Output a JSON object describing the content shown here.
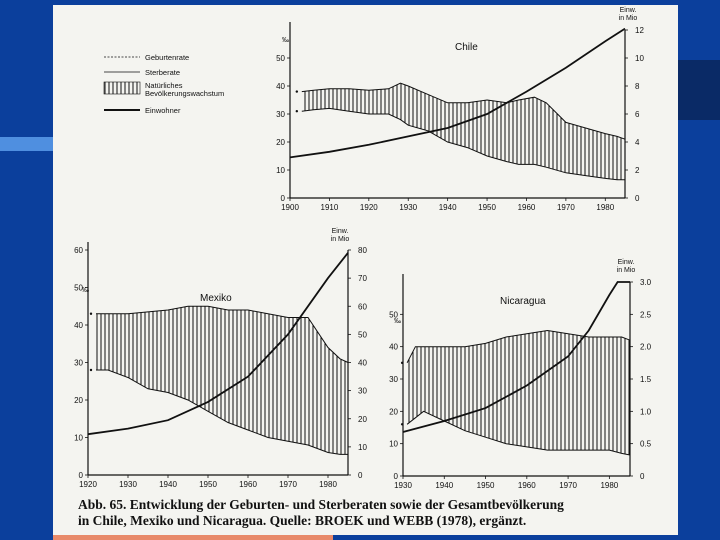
{
  "colors": {
    "background": "#0b3f9c",
    "paper": "#f4f4f0",
    "ink": "#111111"
  },
  "legend": {
    "items": [
      {
        "label": "Geburtenrate",
        "style": "thin"
      },
      {
        "label": "Sterberate",
        "style": "thin"
      },
      {
        "label": "Natürliches Bevölkerungswachstum",
        "style": "hatch"
      },
      {
        "label": "Einwohner",
        "style": "thick"
      }
    ]
  },
  "caption": {
    "line1": "Abb. 65. Entwicklung der Geburten- und Sterberaten sowie der Gesamtbevölkerung",
    "line2": "in Chile, Mexiko und Nicaragua. Quelle: BROEK und WEBB (1978), ergänzt."
  },
  "chart_data": [
    {
      "type": "line",
      "title": "Chile",
      "ylabel": "‰",
      "y2label": "Einw. in Mio",
      "xlim": [
        1900,
        1985
      ],
      "ylim": [
        0,
        60
      ],
      "y2lim": [
        0,
        12
      ],
      "xticks": [
        "1900",
        "1910",
        "1920",
        "1930",
        "1940",
        "1950",
        "1960",
        "1970",
        "1980"
      ],
      "yticks": [
        "0",
        "10",
        "20",
        "30",
        "40",
        "50"
      ],
      "y2ticks": [
        "0",
        "2",
        "4",
        "6",
        "8",
        "10",
        "12"
      ],
      "series": [
        {
          "name": "Geburtenrate",
          "x": [
            1903,
            1906,
            1910,
            1915,
            1920,
            1925,
            1928,
            1930,
            1935,
            1940,
            1945,
            1950,
            1955,
            1958,
            1962,
            1965,
            1970,
            1975,
            1980,
            1983,
            1985
          ],
          "values": [
            38,
            38.5,
            39,
            39,
            38.5,
            39,
            41,
            40,
            37,
            34,
            34,
            35,
            34,
            35,
            36,
            34,
            27,
            25,
            23,
            22,
            21
          ]
        },
        {
          "name": "Sterberate",
          "x": [
            1903,
            1906,
            1910,
            1915,
            1920,
            1925,
            1928,
            1930,
            1935,
            1940,
            1945,
            1950,
            1955,
            1958,
            1962,
            1965,
            1970,
            1975,
            1980,
            1983,
            1985
          ],
          "values": [
            31,
            31.5,
            32,
            31,
            30,
            30,
            28,
            26,
            24,
            20,
            18,
            15,
            13,
            12,
            12,
            11,
            9,
            8,
            7,
            6.5,
            6.5
          ]
        },
        {
          "name": "Einwohner",
          "axis": "y2",
          "x": [
            1900,
            1910,
            1920,
            1930,
            1940,
            1950,
            1960,
            1970,
            1980,
            1985
          ],
          "values": [
            2.9,
            3.3,
            3.8,
            4.4,
            5.0,
            6.0,
            7.6,
            9.3,
            11.2,
            12.1
          ]
        }
      ]
    },
    {
      "type": "line",
      "title": "Mexiko",
      "ylabel": "‰",
      "y2label": "Einw. in Mio",
      "xlim": [
        1920,
        1985
      ],
      "ylim": [
        0,
        60
      ],
      "y2lim": [
        0,
        80
      ],
      "xticks": [
        "1920",
        "1930",
        "1940",
        "1950",
        "1960",
        "1970",
        "1980"
      ],
      "yticks": [
        "0",
        "10",
        "20",
        "30",
        "40",
        "50",
        "60"
      ],
      "y2ticks": [
        "0",
        "10",
        "20",
        "30",
        "40",
        "50",
        "60",
        "70",
        "80"
      ],
      "series": [
        {
          "name": "Geburtenrate",
          "x": [
            1922,
            1925,
            1930,
            1935,
            1940,
            1945,
            1950,
            1955,
            1960,
            1965,
            1970,
            1975,
            1980,
            1983,
            1985
          ],
          "values": [
            43,
            43,
            43,
            43.5,
            44,
            45,
            45,
            44,
            44,
            43,
            42,
            42,
            34,
            31,
            30
          ]
        },
        {
          "name": "Sterberate",
          "x": [
            1922,
            1925,
            1930,
            1935,
            1940,
            1945,
            1950,
            1955,
            1960,
            1965,
            1970,
            1975,
            1980,
            1983,
            1985
          ],
          "values": [
            28,
            28,
            26,
            23,
            22,
            20,
            17,
            14,
            12,
            10,
            9,
            8,
            6,
            5.5,
            5.5
          ]
        },
        {
          "name": "Einwohner",
          "axis": "y2",
          "x": [
            1920,
            1930,
            1940,
            1950,
            1960,
            1970,
            1980,
            1985
          ],
          "values": [
            14.5,
            16.5,
            19.5,
            26,
            35,
            50,
            70,
            79
          ]
        }
      ]
    },
    {
      "type": "line",
      "title": "Nicaragua",
      "ylabel": "‰",
      "y2label": "Einw. in Mio",
      "xlim": [
        1930,
        1985
      ],
      "ylim": [
        0,
        60
      ],
      "y2lim": [
        0,
        3.0
      ],
      "xticks": [
        "1930",
        "1940",
        "1950",
        "1960",
        "1970",
        "1980"
      ],
      "yticks": [
        "0",
        "10",
        "20",
        "30",
        "40",
        "50"
      ],
      "y2ticks": [
        "0",
        "0.5",
        "1.0",
        "1.5",
        "2.0",
        "2.5",
        "3.0"
      ],
      "series": [
        {
          "name": "Geburtenrate",
          "x": [
            1931,
            1933,
            1935,
            1940,
            1945,
            1950,
            1955,
            1960,
            1965,
            1970,
            1975,
            1980,
            1983,
            1985
          ],
          "values": [
            35,
            40,
            40,
            40,
            40,
            41,
            43,
            44,
            45,
            44,
            43,
            43,
            43,
            42
          ]
        },
        {
          "name": "Sterberate",
          "x": [
            1931,
            1933,
            1935,
            1940,
            1945,
            1950,
            1955,
            1960,
            1965,
            1970,
            1975,
            1980,
            1983,
            1985
          ],
          "values": [
            16,
            18,
            20,
            17,
            14,
            12,
            10,
            9,
            8,
            8,
            8,
            8,
            7,
            6.5
          ]
        },
        {
          "name": "Einwohner",
          "axis": "y2",
          "x": [
            1930,
            1940,
            1950,
            1960,
            1970,
            1975,
            1980,
            1982,
            1985
          ],
          "values": [
            0.68,
            0.85,
            1.05,
            1.4,
            1.85,
            2.25,
            2.8,
            3.0,
            3.0
          ]
        }
      ]
    }
  ]
}
